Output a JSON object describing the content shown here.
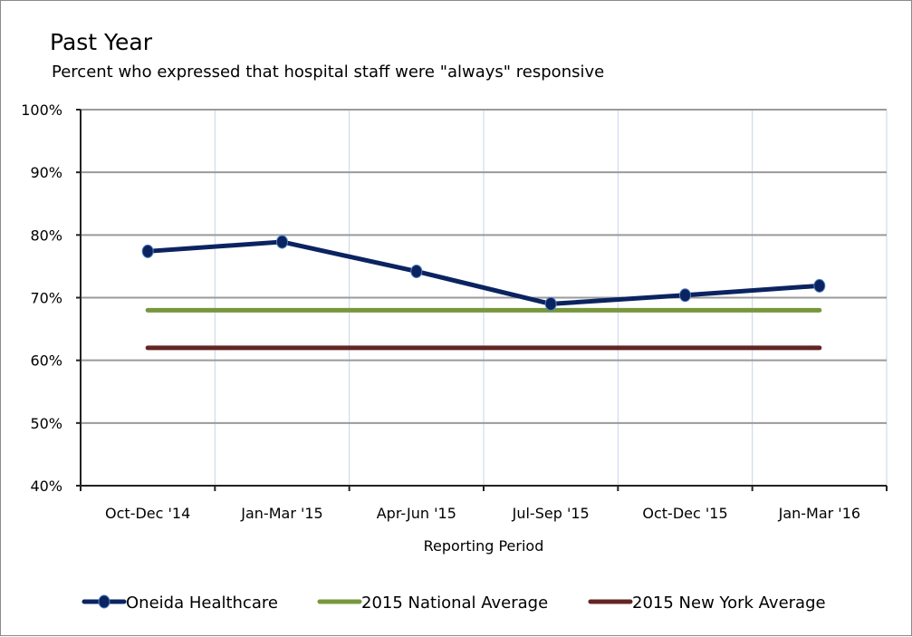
{
  "chart_data": {
    "type": "line",
    "title": "Past Year",
    "subtitle": "Percent who expressed that hospital staff were \"always\" responsive",
    "xlabel": "Reporting Period",
    "ylabel": "",
    "categories": [
      "Oct-Dec '14",
      "Jan-Mar '15",
      "Apr-Jun '15",
      "Jul-Sep '15",
      "Oct-Dec '15",
      "Jan-Mar '16"
    ],
    "ylim": [
      40,
      100
    ],
    "yticks": [
      40,
      50,
      60,
      70,
      80,
      90,
      100
    ],
    "ytick_labels": [
      "40%",
      "50%",
      "60%",
      "70%",
      "80%",
      "90%",
      "100%"
    ],
    "grid": true,
    "legend_position": "bottom",
    "series": [
      {
        "name": "Oneida Healthcare",
        "color": "#0b2360",
        "markers": true,
        "values": [
          77.4,
          78.9,
          74.2,
          69.0,
          70.4,
          71.9
        ]
      },
      {
        "name": "2015 National Average",
        "color": "#77973d",
        "markers": false,
        "values": [
          68,
          68,
          68,
          68,
          68,
          68
        ]
      },
      {
        "name": "2015 New York Average",
        "color": "#632523",
        "markers": false,
        "values": [
          62,
          62,
          62,
          62,
          62,
          62
        ]
      }
    ]
  }
}
